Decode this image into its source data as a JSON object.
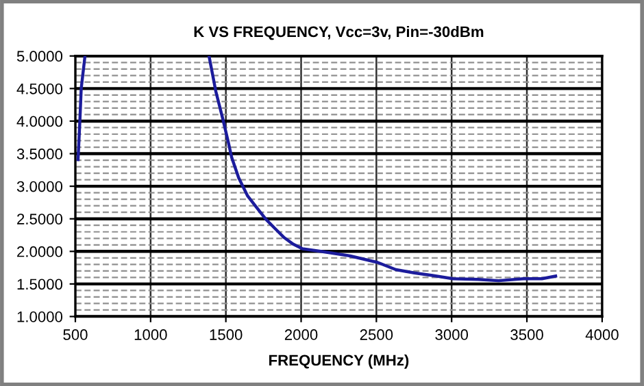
{
  "chart_data": {
    "type": "line",
    "title": "K VS FREQUENCY, Vcc=3v, Pin=-30dBm",
    "xlabel": "FREQUENCY (MHz)",
    "x": [
      518,
      530,
      539,
      564,
      1000,
      1388,
      1433,
      1479,
      1515,
      1539,
      1585,
      1645,
      1706,
      1767,
      1827,
      1888,
      1948,
      2009,
      2130,
      2327,
      2509,
      2630,
      2752,
      2873,
      3009,
      3176,
      3312,
      3479,
      3600,
      3691
    ],
    "series": [
      {
        "color": "#1c1c9c",
        "values": [
          3.41,
          4.0,
          4.5,
          5.0,
          null,
          5.0,
          4.46,
          4.04,
          3.69,
          3.44,
          3.13,
          2.85,
          2.67,
          2.49,
          2.35,
          2.21,
          2.11,
          2.04,
          2.0,
          1.93,
          1.83,
          1.72,
          1.67,
          1.63,
          1.58,
          1.57,
          1.55,
          1.58,
          1.58,
          1.62
        ]
      }
    ],
    "xlim": [
      500,
      4000
    ],
    "xticks": [
      500,
      1000,
      1500,
      2000,
      2500,
      3000,
      3500,
      4000
    ],
    "ylim": [
      1.0,
      5.0
    ],
    "yticks": [
      {
        "value": 1.0,
        "label": "1.0000"
      },
      {
        "value": 1.5,
        "label": "1.5000"
      },
      {
        "value": 2.0,
        "label": "2.0000"
      },
      {
        "value": 2.5,
        "label": "2.5000"
      },
      {
        "value": 3.0,
        "label": "3.0000"
      },
      {
        "value": 3.5,
        "label": "3.5000"
      },
      {
        "value": 4.0,
        "label": "4.0000"
      },
      {
        "value": 4.5,
        "label": "4.5000"
      },
      {
        "value": 5.0,
        "label": "5.0000"
      }
    ],
    "grid": true,
    "marker": "none",
    "line_style": "solid"
  }
}
